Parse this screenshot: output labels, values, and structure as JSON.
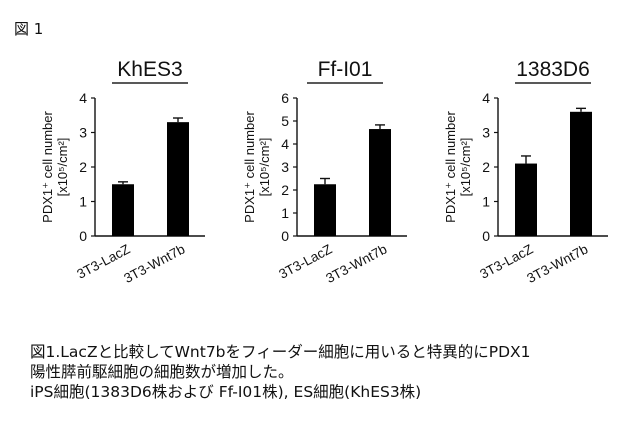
{
  "figure_label": "図 1",
  "caption": {
    "line1": "図1.LacZと比較してWnt7bをフィーダー細胞に用いると特異的にPDX1",
    "line2": "陽性膵前駆細胞の細胞数が増加した。",
    "line3": "iPS細胞(1383D6株および Ff-I01株), ES細胞(KhES3株)"
  },
  "chart_data": [
    {
      "type": "bar",
      "title": "KhES3",
      "ylabel": "PDX1⁺ cell number [x10⁵/cm²]",
      "categories": [
        "3T3-LacZ",
        "3T3-Wnt7b"
      ],
      "values": [
        1.5,
        3.3
      ],
      "errors": [
        0.07,
        0.12
      ],
      "ylim": [
        0,
        4
      ],
      "yticks": [
        0,
        1,
        2,
        3,
        4
      ],
      "color": "#000000"
    },
    {
      "type": "bar",
      "title": "Ff-I01",
      "ylabel": "PDX1⁺ cell number [x10⁵/cm²]",
      "categories": [
        "3T3-LacZ",
        "3T3-Wnt7b"
      ],
      "values": [
        2.25,
        4.65
      ],
      "errors": [
        0.25,
        0.18
      ],
      "ylim": [
        0,
        6
      ],
      "yticks": [
        0,
        1,
        2,
        3,
        4,
        5,
        6
      ],
      "color": "#000000"
    },
    {
      "type": "bar",
      "title": "1383D6",
      "ylabel": "PDX1⁺ cell number [x10⁵/cm²]",
      "categories": [
        "3T3-LacZ",
        "3T3-Wnt7b"
      ],
      "values": [
        2.1,
        3.6
      ],
      "errors": [
        0.22,
        0.1
      ],
      "ylim": [
        0,
        4
      ],
      "yticks": [
        0,
        1,
        2,
        3,
        4
      ],
      "color": "#000000"
    }
  ]
}
